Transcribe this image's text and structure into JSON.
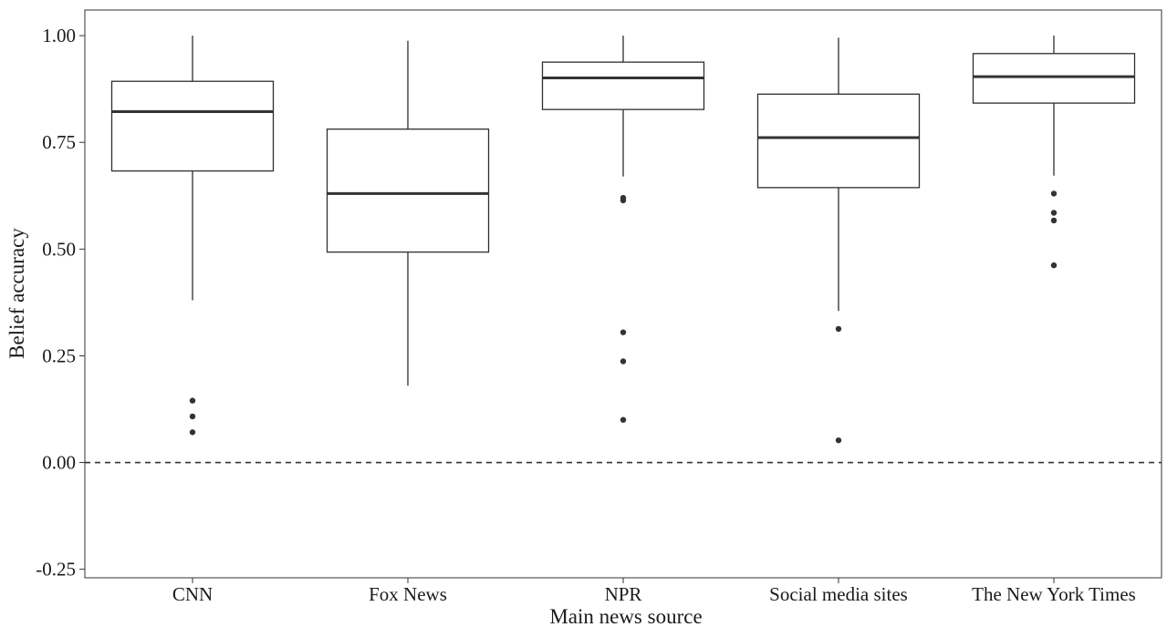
{
  "chart_data": {
    "type": "box",
    "xlabel": "Main news source",
    "ylabel": "Belief accuracy",
    "ylim": [
      -0.27,
      1.06
    ],
    "yticks": [
      -0.25,
      0.0,
      0.25,
      0.5,
      0.75,
      1.0
    ],
    "ytick_labels": [
      "-0.25",
      "0.00",
      "0.25",
      "0.50",
      "0.75",
      "1.00"
    ],
    "reference_line": {
      "y": 0.0,
      "style": "dashed"
    },
    "grid": false,
    "categories": [
      "CNN",
      "Fox News",
      "NPR",
      "Social media sites",
      "The New York Times"
    ],
    "boxes": [
      {
        "category": "CNN",
        "min": 0.38,
        "q1": 0.683,
        "median": 0.822,
        "q3": 0.893,
        "max": 1.0,
        "outliers": [
          0.145,
          0.108,
          0.071
        ]
      },
      {
        "category": "Fox News",
        "min": 0.18,
        "q1": 0.493,
        "median": 0.63,
        "q3": 0.781,
        "max": 0.988,
        "outliers": []
      },
      {
        "category": "NPR",
        "min": 0.67,
        "q1": 0.827,
        "median": 0.901,
        "q3": 0.938,
        "max": 1.0,
        "outliers": [
          0.62,
          0.614,
          0.305,
          0.237,
          0.1
        ]
      },
      {
        "category": "Social media sites",
        "min": 0.355,
        "q1": 0.644,
        "median": 0.761,
        "q3": 0.863,
        "max": 0.995,
        "outliers": [
          0.313,
          0.052
        ]
      },
      {
        "category": "The New York Times",
        "min": 0.672,
        "q1": 0.842,
        "median": 0.904,
        "q3": 0.958,
        "max": 1.0,
        "outliers": [
          0.63,
          0.585,
          0.567,
          0.462
        ]
      }
    ],
    "colors": {
      "box_stroke": "#2e2e2e",
      "box_fill": "#ffffff",
      "median": "#333333",
      "outlier": "#333333",
      "axis": "#333333",
      "reference_line": "#333333"
    }
  }
}
